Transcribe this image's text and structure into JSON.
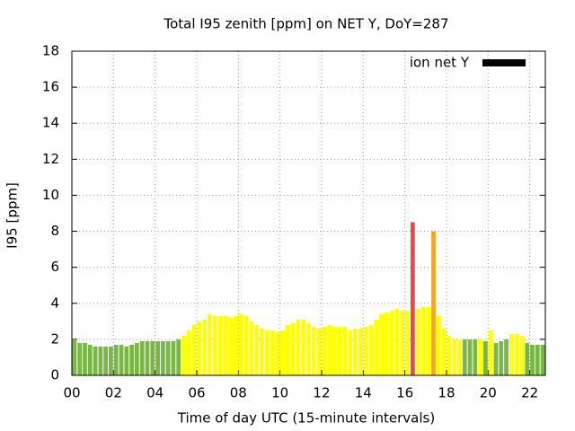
{
  "chart_data": {
    "type": "bar",
    "title": "Total I95 zenith [ppm] on NET Y, DoY=287",
    "x_label": "Time of day UTC (15-minute intervals)",
    "y_label": "I95 [ppm]",
    "x": [
      0,
      0.25,
      0.5,
      0.75,
      1,
      1.25,
      1.5,
      1.75,
      2,
      2.25,
      2.5,
      2.75,
      3,
      3.25,
      3.5,
      3.75,
      4,
      4.25,
      4.5,
      4.75,
      5,
      5.25,
      5.5,
      5.75,
      6,
      6.25,
      6.5,
      6.75,
      7,
      7.25,
      7.5,
      7.75,
      8,
      8.25,
      8.5,
      8.75,
      9,
      9.25,
      9.5,
      9.75,
      10,
      10.25,
      10.5,
      10.75,
      11,
      11.25,
      11.5,
      11.75,
      12,
      12.25,
      12.5,
      12.75,
      13,
      13.25,
      13.5,
      13.75,
      14,
      14.25,
      14.5,
      14.75,
      15,
      15.25,
      15.5,
      15.75,
      16,
      16.25,
      16.5,
      16.75,
      17,
      17.25,
      17.5,
      17.75,
      18,
      18.25,
      18.5,
      18.75,
      19,
      19.25,
      19.5,
      19.75,
      20,
      20.25,
      20.5,
      20.75,
      21,
      21.25,
      21.5,
      21.75,
      22,
      22.25,
      22.5
    ],
    "series": [
      {
        "name": "ion net Y",
        "color": "#000000",
        "values": [
          2.0,
          1.8,
          1.8,
          1.7,
          1.6,
          1.6,
          1.6,
          1.6,
          1.7,
          1.7,
          1.6,
          1.7,
          1.8,
          1.9,
          1.9,
          1.9,
          1.9,
          1.9,
          1.9,
          1.9,
          2.0,
          2.2,
          2.5,
          2.8,
          3.0,
          3.1,
          3.4,
          3.3,
          3.3,
          3.3,
          3.2,
          3.3,
          3.4,
          3.3,
          3.0,
          2.8,
          2.6,
          2.5,
          2.5,
          2.4,
          2.5,
          2.8,
          2.9,
          3.1,
          3.1,
          2.9,
          2.7,
          2.6,
          2.7,
          2.8,
          2.7,
          2.7,
          2.7,
          2.5,
          2.6,
          2.6,
          2.7,
          2.8,
          3.1,
          3.4,
          3.5,
          3.6,
          3.7,
          3.6,
          3.6,
          8.5,
          3.7,
          3.8,
          3.8,
          8.0,
          3.3,
          2.6,
          2.2,
          2.0,
          2.0,
          2.0,
          2.0,
          2.0,
          2.0,
          1.9,
          2.5,
          1.8,
          1.9,
          2.0,
          2.3,
          2.3,
          2.2,
          1.8,
          1.7,
          1.7,
          1.7
        ],
        "bar_colors": [
          "#7ab648",
          "#7ab648",
          "#7ab648",
          "#7ab648",
          "#7ab648",
          "#7ab648",
          "#7ab648",
          "#7ab648",
          "#7ab648",
          "#7ab648",
          "#7ab648",
          "#7ab648",
          "#7ab648",
          "#7ab648",
          "#7ab648",
          "#7ab648",
          "#7ab648",
          "#7ab648",
          "#7ab648",
          "#7ab648",
          "#7ab648",
          "#ffff00",
          "#ffff00",
          "#ffff00",
          "#ffff00",
          "#ffff00",
          "#ffff00",
          "#ffff00",
          "#ffff00",
          "#ffff00",
          "#ffff00",
          "#ffff00",
          "#ffff00",
          "#ffff00",
          "#ffff00",
          "#ffff00",
          "#ffff00",
          "#ffff00",
          "#ffff00",
          "#ffff00",
          "#ffff00",
          "#ffff00",
          "#ffff00",
          "#ffff00",
          "#ffff00",
          "#ffff00",
          "#ffff00",
          "#ffff00",
          "#ffff00",
          "#ffff00",
          "#ffff00",
          "#ffff00",
          "#ffff00",
          "#ffff00",
          "#ffff00",
          "#ffff00",
          "#ffff00",
          "#ffff00",
          "#ffff00",
          "#ffff00",
          "#ffff00",
          "#ffff00",
          "#ffff00",
          "#ffff00",
          "#ffff00",
          "#e84a4a",
          "#ffff00",
          "#ffff00",
          "#ffff00",
          "#f5a623",
          "#ffff00",
          "#ffff00",
          "#ffff00",
          "#ffff00",
          "#ffff00",
          "#7ab648",
          "#7ab648",
          "#7ab648",
          "#ffff00",
          "#7ab648",
          "#ffff00",
          "#7ab648",
          "#7ab648",
          "#7ab648",
          "#ffff00",
          "#ffff00",
          "#ffff00",
          "#7ab648",
          "#7ab648",
          "#7ab648",
          "#7ab648"
        ]
      }
    ],
    "xlim": [
      0,
      22.75
    ],
    "ylim": [
      0,
      18
    ],
    "xticks": [
      {
        "value": 0,
        "label": "00"
      },
      {
        "value": 2,
        "label": "02"
      },
      {
        "value": 4,
        "label": "04"
      },
      {
        "value": 6,
        "label": "06"
      },
      {
        "value": 8,
        "label": "08"
      },
      10,
      12,
      14,
      16,
      18,
      20,
      22
    ],
    "yticks": [
      0,
      2,
      4,
      6,
      8,
      10,
      12,
      14,
      16,
      18
    ],
    "bar_width": 0.25,
    "grid": true,
    "legend": "top-right"
  }
}
